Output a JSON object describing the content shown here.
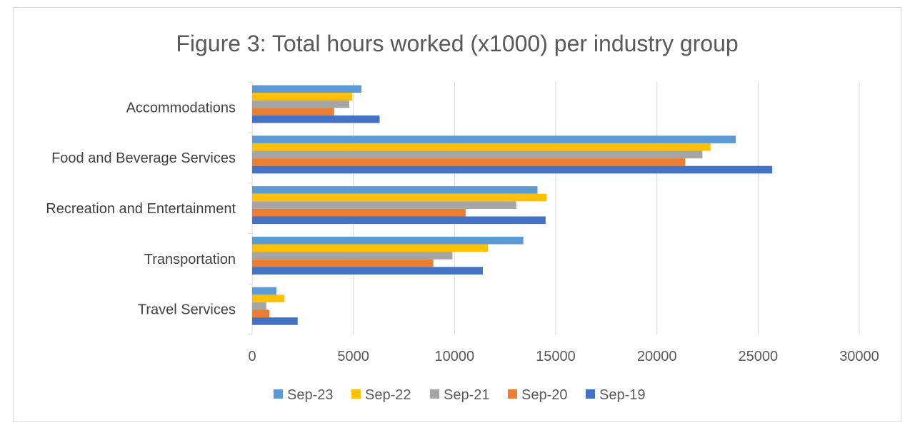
{
  "chart_data": {
    "type": "bar",
    "orientation": "horizontal",
    "title": "Figure 3: Total hours worked (x1000) per industry group",
    "xlabel": "",
    "ylabel": "",
    "xlim": [
      0,
      30000
    ],
    "x_ticks": [
      0,
      5000,
      10000,
      15000,
      20000,
      25000,
      30000
    ],
    "grid": "vertical gridlines on",
    "legend_position": "bottom",
    "categories": [
      "Accommodations",
      "Food and Beverage Services",
      "Recreation and Entertainment",
      "Transportation",
      "Travel Services"
    ],
    "series": [
      {
        "name": "Sep-23",
        "color": "#5b9bd5",
        "values": [
          5400,
          23900,
          14100,
          13400,
          1200
        ]
      },
      {
        "name": "Sep-22",
        "color": "#ffc000",
        "values": [
          4950,
          22650,
          14550,
          11650,
          1600
        ]
      },
      {
        "name": "Sep-21",
        "color": "#a5a5a5",
        "values": [
          4800,
          22250,
          13050,
          9900,
          700
        ]
      },
      {
        "name": "Sep-20",
        "color": "#ed7d31",
        "values": [
          4050,
          21400,
          10550,
          8950,
          850
        ]
      },
      {
        "name": "Sep-19",
        "color": "#4472c4",
        "values": [
          6300,
          25700,
          14500,
          11400,
          2250
        ]
      }
    ]
  }
}
